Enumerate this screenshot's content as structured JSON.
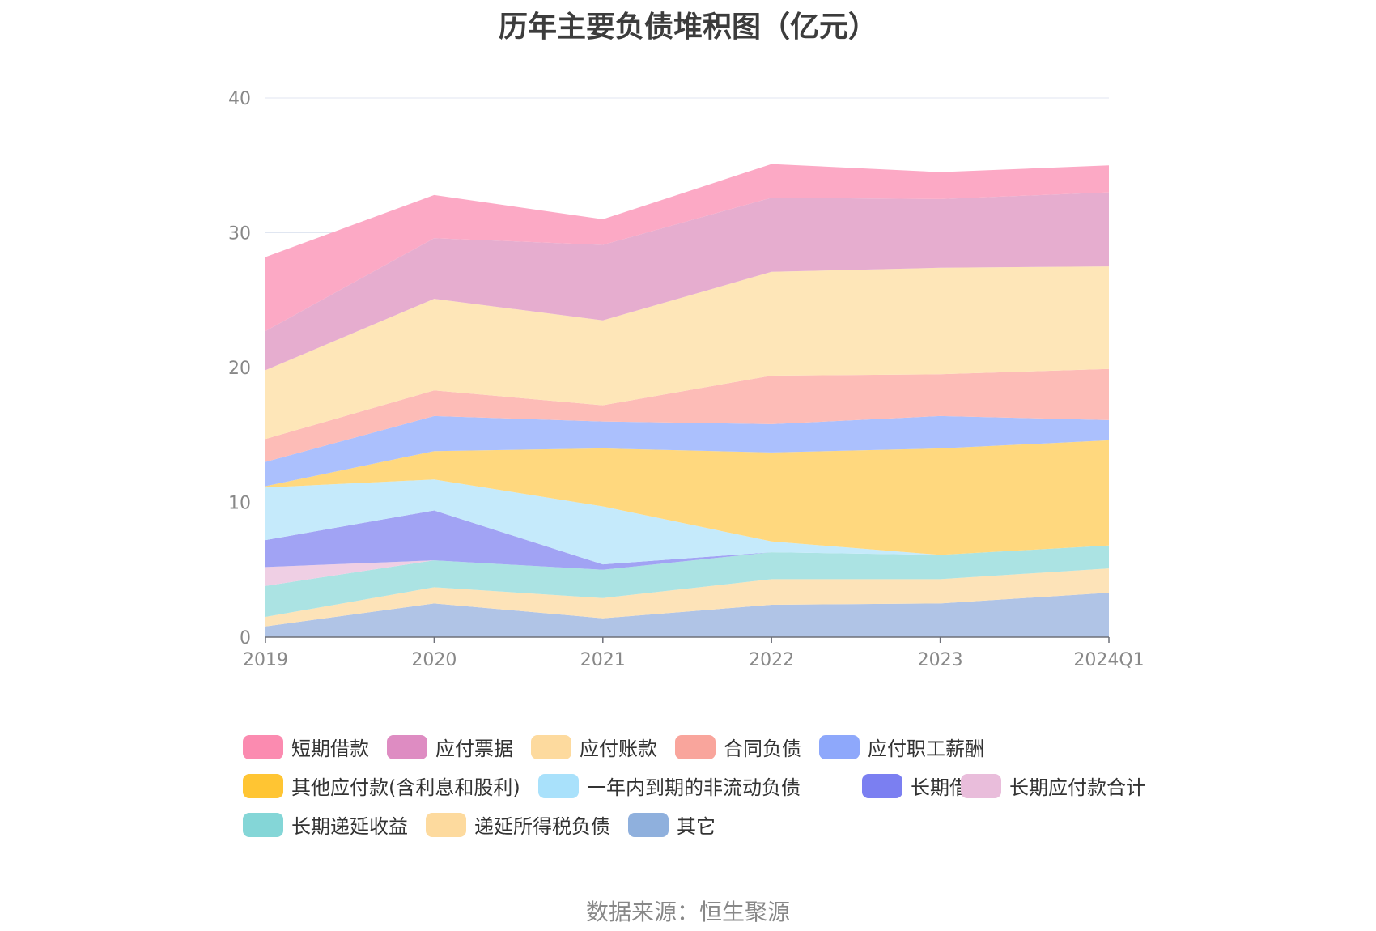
{
  "source": "数据来源：恒生聚源",
  "chart_data": {
    "type": "area",
    "stacked": true,
    "title": "历年主要负债堆积图（亿元）",
    "categories": [
      "2019",
      "2020",
      "2021",
      "2022",
      "2023",
      "2024Q1"
    ],
    "ylim": [
      0,
      40
    ],
    "yticks": [
      0,
      10,
      20,
      30,
      40
    ],
    "grid": true,
    "legend_position": "bottom",
    "series": [
      {
        "name": "其它",
        "color": "#b0c4e6",
        "values": [
          0.8,
          2.5,
          1.4,
          2.4,
          2.5,
          3.3
        ]
      },
      {
        "name": "递延所得税负债",
        "color": "#fde3b8",
        "values": [
          0.7,
          1.2,
          1.5,
          1.9,
          1.8,
          1.8
        ]
      },
      {
        "name": "长期递延收益",
        "color": "#abe3e3",
        "values": [
          2.3,
          2.0,
          2.1,
          2.0,
          1.8,
          1.7
        ]
      },
      {
        "name": "长期应付款合计",
        "color": "#efcfe4",
        "values": [
          1.4,
          0.0,
          0.0,
          0.0,
          0.0,
          0.0
        ]
      },
      {
        "name": "长期借款",
        "color": "#a1a3f4",
        "values": [
          2.0,
          3.7,
          0.4,
          0.0,
          0.0,
          0.0
        ]
      },
      {
        "name": "一年内到期的非流动负债",
        "color": "#c5eafb",
        "values": [
          3.9,
          2.3,
          4.3,
          0.8,
          0.0,
          0.0
        ]
      },
      {
        "name": "其他应付款(含利息和股利)",
        "color": "#ffd87e",
        "values": [
          0.1,
          2.1,
          4.3,
          6.6,
          7.9,
          7.8
        ]
      },
      {
        "name": "应付职工薪酬",
        "color": "#abc0fd",
        "values": [
          1.8,
          2.6,
          2.0,
          2.1,
          2.4,
          1.5
        ]
      },
      {
        "name": "合同负债",
        "color": "#fdbcb7",
        "values": [
          1.7,
          1.9,
          1.2,
          3.6,
          3.1,
          3.8
        ]
      },
      {
        "name": "应付账款",
        "color": "#fee6b8",
        "values": [
          5.1,
          6.8,
          6.3,
          7.7,
          7.9,
          7.6
        ]
      },
      {
        "name": "应付票据",
        "color": "#e6adcf",
        "values": [
          2.9,
          4.5,
          5.6,
          5.5,
          5.1,
          5.5
        ]
      },
      {
        "name": "短期借款",
        "color": "#fca9c5",
        "values": [
          5.5,
          3.2,
          1.9,
          2.5,
          2.0,
          2.0
        ]
      }
    ],
    "legend": [
      {
        "name": "短期借款",
        "color": "#fb8bb0"
      },
      {
        "name": "应付票据",
        "color": "#de8cc2"
      },
      {
        "name": "应付账款",
        "color": "#fdda9e"
      },
      {
        "name": "合同负债",
        "color": "#f9a59c"
      },
      {
        "name": "应付职工薪酬",
        "color": "#8ea8fb"
      },
      {
        "name": "其他应付款(含利息和股利)",
        "color": "#ffc533"
      },
      {
        "name": "一年内到期的非流动负债",
        "color": "#a9e1fb"
      },
      {
        "name": "长期借款",
        "color": "#7b7ff1"
      },
      {
        "name": "长期应付款合计",
        "color": "#e9bddb"
      },
      {
        "name": "长期递延收益",
        "color": "#84d6d7"
      },
      {
        "name": "递延所得税负债",
        "color": "#fdda9e"
      },
      {
        "name": "其它",
        "color": "#8fb0dd"
      }
    ]
  }
}
